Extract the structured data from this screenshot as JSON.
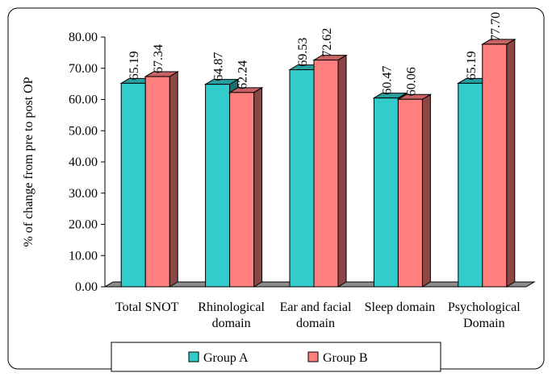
{
  "chart_data": {
    "type": "bar",
    "title": "",
    "xlabel": "",
    "ylabel": "% of change from pre to post OP",
    "ylim": [
      0,
      80
    ],
    "yticks": [
      "0.00",
      "10.00",
      "20.00",
      "30.00",
      "40.00",
      "50.00",
      "60.00",
      "70.00",
      "80.00"
    ],
    "grid": false,
    "legend_position": "bottom",
    "categories": [
      [
        "Total SNOT"
      ],
      [
        "Rhinological",
        "domain"
      ],
      [
        "Ear and facial",
        "domain"
      ],
      [
        "Sleep domain"
      ],
      [
        "Psychological",
        "Domain"
      ]
    ],
    "series": [
      {
        "name": "Group A",
        "color": "#33CCCC",
        "values": [
          65.19,
          64.87,
          69.53,
          60.47,
          65.19
        ],
        "labels": [
          "65.19",
          "64.87",
          "69.53",
          "60.47",
          "65.19"
        ]
      },
      {
        "name": "Group B",
        "color": "#FF7F7F",
        "values": [
          67.34,
          62.24,
          72.62,
          60.06,
          77.7
        ],
        "labels": [
          "67.34",
          "62.24",
          "72.62",
          "60.06",
          "77.70"
        ]
      }
    ]
  }
}
